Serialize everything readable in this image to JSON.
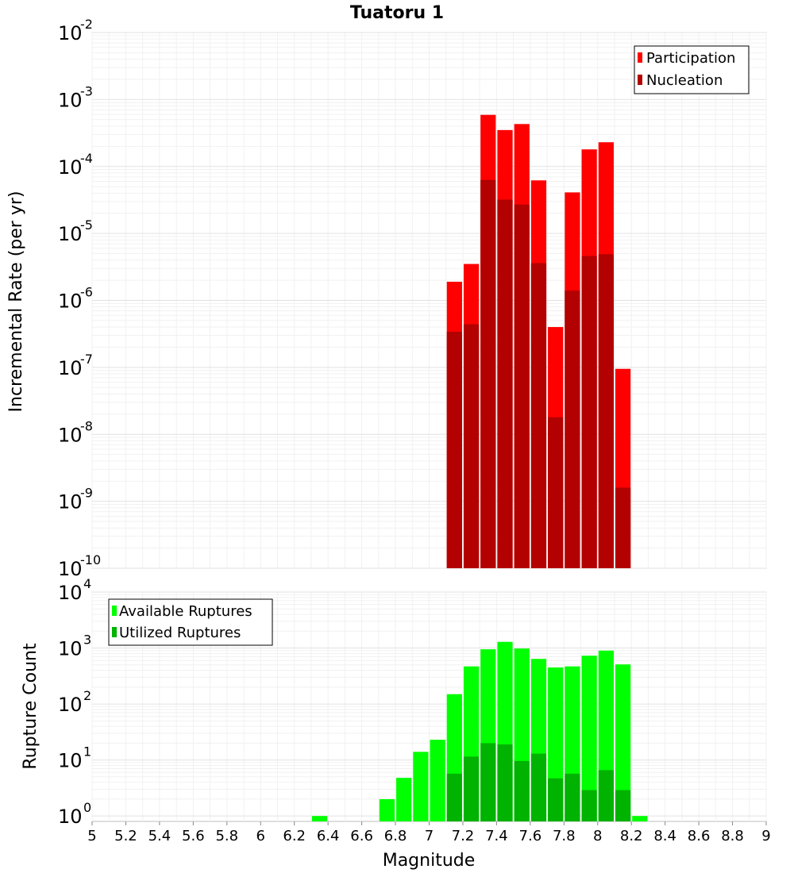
{
  "chart_data": [
    {
      "type": "bar",
      "title": "Tuatoru 1",
      "ylabel": "Incremental Rate (per yr)",
      "xlabel": "",
      "xlim": [
        5,
        9
      ],
      "ylim": [
        1e-10,
        0.01
      ],
      "yscale": "log",
      "grid": true,
      "legend_position": "top-right",
      "ytick_labels": [
        {
          "base": "10",
          "exp": "-10"
        },
        {
          "base": "10",
          "exp": "-9"
        },
        {
          "base": "10",
          "exp": "-8"
        },
        {
          "base": "10",
          "exp": "-7"
        },
        {
          "base": "10",
          "exp": "-6"
        },
        {
          "base": "10",
          "exp": "-5"
        },
        {
          "base": "10",
          "exp": "-4"
        },
        {
          "base": "10",
          "exp": "-3"
        },
        {
          "base": "10",
          "exp": "-2"
        }
      ],
      "bin_width": 0.1,
      "x": [
        7.15,
        7.25,
        7.35,
        7.45,
        7.55,
        7.65,
        7.75,
        7.85,
        7.95,
        8.05,
        8.15
      ],
      "series": [
        {
          "name": "Participation",
          "color": "#ff0000",
          "values": [
            1.9e-06,
            3.5e-06,
            0.00059,
            0.00035,
            0.00043,
            6.2e-05,
            4e-07,
            4.1e-05,
            0.00018,
            0.00023,
            9.5e-08
          ]
        },
        {
          "name": "Nucleation",
          "color": "#b30000",
          "values": [
            3.4e-07,
            4.4e-07,
            6.3e-05,
            3.2e-05,
            2.7e-05,
            3.6e-06,
            1.8e-08,
            1.4e-06,
            4.6e-06,
            4.9e-06,
            1.6e-09
          ]
        }
      ]
    },
    {
      "type": "bar",
      "title": "",
      "ylabel": "Rupture Count",
      "xlabel": "Magnitude",
      "xlim": [
        5,
        9
      ],
      "ylim": [
        0.8,
        10000
      ],
      "yscale": "log",
      "grid": true,
      "legend_position": "top-left",
      "xticks": [
        "5",
        "5.2",
        "5.4",
        "5.6",
        "5.8",
        "6",
        "6.2",
        "6.4",
        "6.6",
        "6.8",
        "7",
        "7.2",
        "7.4",
        "7.6",
        "7.8",
        "8",
        "8.2",
        "8.4",
        "8.6",
        "8.8",
        "9"
      ],
      "ytick_labels": [
        {
          "base": "10",
          "exp": "0"
        },
        {
          "base": "10",
          "exp": "1"
        },
        {
          "base": "10",
          "exp": "2"
        },
        {
          "base": "10",
          "exp": "3"
        },
        {
          "base": "10",
          "exp": "4"
        }
      ],
      "bin_width": 0.1,
      "series": [
        {
          "name": "Available Ruptures",
          "color": "#00ff00",
          "x": [
            6.35,
            6.75,
            6.85,
            6.95,
            7.05,
            7.15,
            7.25,
            7.35,
            7.45,
            7.55,
            7.65,
            7.75,
            7.85,
            7.95,
            8.05,
            8.15,
            8.25
          ],
          "values": [
            1,
            2,
            4.8,
            14,
            23,
            150,
            470,
            950,
            1290,
            980,
            640,
            450,
            470,
            730,
            900,
            510,
            1
          ]
        },
        {
          "name": "Utilized Ruptures",
          "color": "#00b300",
          "x": [
            7.15,
            7.25,
            7.35,
            7.45,
            7.55,
            7.65,
            7.75,
            7.85,
            7.95,
            8.05,
            8.15
          ],
          "values": [
            5.7,
            11.5,
            20,
            19,
            9.6,
            13,
            4.7,
            5.7,
            2.9,
            6.6,
            2.9
          ]
        }
      ]
    }
  ]
}
